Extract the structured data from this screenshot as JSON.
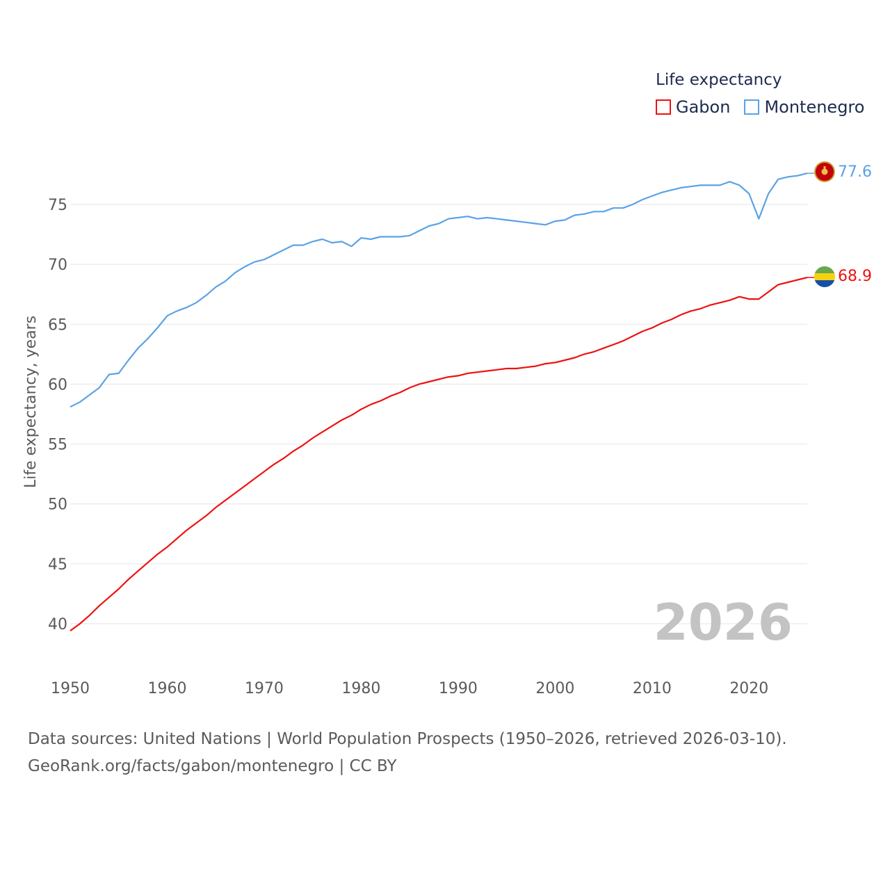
{
  "legend": {
    "title": "Life expectancy",
    "items": [
      {
        "label": "Gabon",
        "color": "#ee1111"
      },
      {
        "label": "Montenegro",
        "color": "#5aa2e6"
      }
    ]
  },
  "source": {
    "line1": "Data sources: United Nations | World Population Prospects (1950–2026, retrieved 2026-03-10).",
    "line2": "GeoRank.org/facts/gabon/montenegro | CC BY"
  },
  "chart_data": {
    "type": "line",
    "title": "Life expectancy",
    "xlabel": "",
    "ylabel": "Life expectancy, years",
    "xlim": [
      1950,
      2026
    ],
    "ylim": [
      38,
      79
    ],
    "xticks": [
      1950,
      1960,
      1970,
      1980,
      1990,
      2000,
      2010,
      2020
    ],
    "yticks": [
      40,
      45,
      50,
      55,
      60,
      65,
      70,
      75
    ],
    "grid": true,
    "legend": "top-right",
    "current_year": "2026",
    "x": [
      1950,
      1951,
      1952,
      1953,
      1954,
      1955,
      1956,
      1957,
      1958,
      1959,
      1960,
      1961,
      1962,
      1963,
      1964,
      1965,
      1966,
      1967,
      1968,
      1969,
      1970,
      1971,
      1972,
      1973,
      1974,
      1975,
      1976,
      1977,
      1978,
      1979,
      1980,
      1981,
      1982,
      1983,
      1984,
      1985,
      1986,
      1987,
      1988,
      1989,
      1990,
      1991,
      1992,
      1993,
      1994,
      1995,
      1996,
      1997,
      1998,
      1999,
      2000,
      2001,
      2002,
      2003,
      2004,
      2005,
      2006,
      2007,
      2008,
      2009,
      2010,
      2011,
      2012,
      2013,
      2014,
      2015,
      2016,
      2017,
      2018,
      2019,
      2020,
      2021,
      2022,
      2023,
      2024,
      2025,
      2026
    ],
    "series": [
      {
        "name": "Gabon",
        "color": "#ee1111",
        "end_label": "68.9",
        "values": [
          39.4,
          40.0,
          40.7,
          41.5,
          42.2,
          42.9,
          43.7,
          44.4,
          45.1,
          45.8,
          46.4,
          47.1,
          47.8,
          48.4,
          49.0,
          49.7,
          50.3,
          50.9,
          51.5,
          52.1,
          52.7,
          53.3,
          53.8,
          54.4,
          54.9,
          55.5,
          56.0,
          56.5,
          57.0,
          57.4,
          57.9,
          58.3,
          58.6,
          59.0,
          59.3,
          59.7,
          60.0,
          60.2,
          60.4,
          60.6,
          60.7,
          60.9,
          61.0,
          61.1,
          61.2,
          61.3,
          61.3,
          61.4,
          61.5,
          61.7,
          61.8,
          62.0,
          62.2,
          62.5,
          62.7,
          63.0,
          63.3,
          63.6,
          64.0,
          64.4,
          64.7,
          65.1,
          65.4,
          65.8,
          66.1,
          66.3,
          66.6,
          66.8,
          67.0,
          67.3,
          67.1,
          67.1,
          67.7,
          68.3,
          68.5,
          68.7,
          68.9
        ]
      },
      {
        "name": "Montenegro",
        "color": "#5aa2e6",
        "end_label": "77.6",
        "values": [
          58.1,
          58.5,
          59.1,
          59.7,
          60.8,
          60.9,
          62.0,
          63.0,
          63.8,
          64.7,
          65.7,
          66.1,
          66.4,
          66.8,
          67.4,
          68.1,
          68.6,
          69.3,
          69.8,
          70.2,
          70.4,
          70.8,
          71.2,
          71.6,
          71.6,
          71.9,
          72.1,
          71.8,
          71.9,
          71.5,
          72.2,
          72.1,
          72.3,
          72.3,
          72.3,
          72.4,
          72.8,
          73.2,
          73.4,
          73.8,
          73.9,
          74.0,
          73.8,
          73.9,
          73.8,
          73.7,
          73.6,
          73.5,
          73.4,
          73.3,
          73.6,
          73.7,
          74.1,
          74.2,
          74.4,
          74.4,
          74.7,
          74.7,
          75.0,
          75.4,
          75.7,
          76.0,
          76.2,
          76.4,
          76.5,
          76.6,
          76.6,
          76.6,
          76.9,
          76.6,
          75.9,
          73.8,
          75.9,
          77.1,
          77.3,
          77.4,
          77.6
        ]
      }
    ]
  }
}
